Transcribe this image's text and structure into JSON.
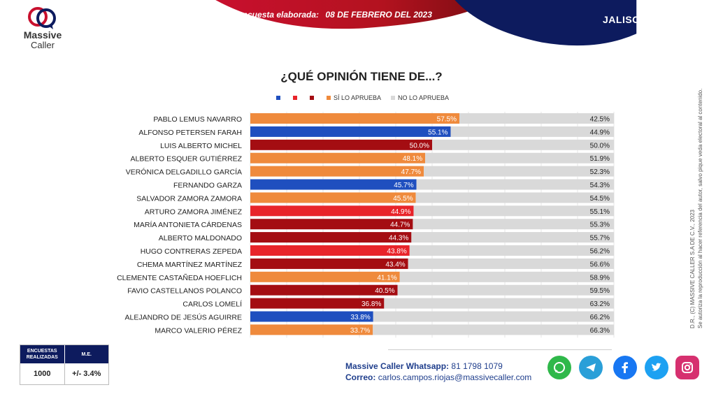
{
  "brand": {
    "name_line1": "Massive",
    "name_line2": "Caller"
  },
  "header": {
    "survey_label": "Última encuesta elaborada:",
    "survey_date": "08 DE FEBRERO DEL 2023",
    "region": "JALISCO"
  },
  "chart_data": {
    "type": "bar",
    "orientation": "horizontal-stacked",
    "title": "¿QUÉ OPINIÓN TIENE DE...?",
    "legend": [
      {
        "label": "",
        "color": "#1f4fbf"
      },
      {
        "label": "",
        "color": "#e8242a"
      },
      {
        "label": "",
        "color": "#a40d12"
      },
      {
        "label": "SÍ LO APRUEBA",
        "color": "#ef8a3c"
      },
      {
        "label": "NO LO APRUEBA",
        "color": "#d9d9d9"
      }
    ],
    "categories": [
      "PABLO LEMUS NAVARRO",
      "ALFONSO PETERSEN FARAH",
      "LUIS ALBERTO MICHEL",
      "ALBERTO ESQUER GUTIÉRREZ",
      "VERÓNICA DELGADILLO GARCÍA",
      "FERNANDO GARZA",
      "SALVADOR ZAMORA ZAMORA",
      "ARTURO ZAMORA JIMÉNEZ",
      "MARÍA ANTONIETA CÁRDENAS",
      "ALBERTO MALDONADO",
      "HUGO CONTRERAS ZEPEDA",
      "CHEMA MARTÍNEZ MARTÍNEZ",
      "CLEMENTE CASTAÑEDA HOEFLICH",
      "FAVIO CASTELLANOS POLANCO",
      "CARLOS LOMELÍ",
      "ALEJANDRO DE JESÚS AGUIRRE",
      "MARCO VALERIO PÉREZ"
    ],
    "approve": [
      57.5,
      55.1,
      50.0,
      48.1,
      47.7,
      45.7,
      45.5,
      44.9,
      44.7,
      44.3,
      43.8,
      43.4,
      41.1,
      40.5,
      36.8,
      33.8,
      33.7
    ],
    "disapprove": [
      42.5,
      44.9,
      50.0,
      51.9,
      52.3,
      54.3,
      54.5,
      55.1,
      55.3,
      55.7,
      56.2,
      56.6,
      58.9,
      59.5,
      63.2,
      66.2,
      66.3
    ],
    "approve_labels": [
      "57.5%",
      "55.1%",
      "50.0%",
      "48.1%",
      "47.7%",
      "45.7%",
      "45.5%",
      "44.9%",
      "44.7%",
      "44.3%",
      "43.8%",
      "43.4%",
      "41.1%",
      "40.5%",
      "36.8%",
      "33.8%",
      "33.7%"
    ],
    "disapprove_labels": [
      "42.5%",
      "44.9%",
      "50.0%",
      "51.9%",
      "52.3%",
      "54.3%",
      "54.5%",
      "55.1%",
      "55.3%",
      "55.7%",
      "56.2%",
      "56.6%",
      "58.9%",
      "59.5%",
      "63.2%",
      "66.2%",
      "66.3%"
    ],
    "bar_colors": [
      "#ef8a3c",
      "#1f4fbf",
      "#a40d12",
      "#ef8a3c",
      "#ef8a3c",
      "#1f4fbf",
      "#ef8a3c",
      "#e8242a",
      "#a40d12",
      "#a40d12",
      "#e8242a",
      "#a40d12",
      "#ef8a3c",
      "#a40d12",
      "#a40d12",
      "#1f4fbf",
      "#ef8a3c"
    ],
    "disapprove_color": "#d9d9d9",
    "xlim": [
      0,
      100
    ],
    "grid": true
  },
  "copyright": {
    "line1": "D.R., (C) MASSIVE CALLER S.A DE C.V., 2023",
    "line2": "Se autoriza la reproducción al hacer referencia del autor, salvo pique veda electoral al contenido."
  },
  "stats": {
    "col1_header": "ENCUESTAS REALIZADAS",
    "col2_header": "M.E.",
    "col1_value": "1000",
    "col2_value": "+/- 3.4%"
  },
  "contact": {
    "whatsapp_label": "Massive Caller Whatsapp:",
    "whatsapp_number": "81 1798 1079",
    "email_label": "Correo:",
    "email": "carlos.campos.riojas@massivecaller.com"
  },
  "social": [
    {
      "icon": "whatsapp-icon",
      "color": "#2fb84a"
    },
    {
      "icon": "telegram-icon",
      "color": "#2a9fd8"
    },
    {
      "icon": "facebook-icon",
      "color": "#1877f2"
    },
    {
      "icon": "twitter-icon",
      "color": "#1da1f2"
    },
    {
      "icon": "instagram-icon",
      "color": "#d6306f"
    }
  ]
}
